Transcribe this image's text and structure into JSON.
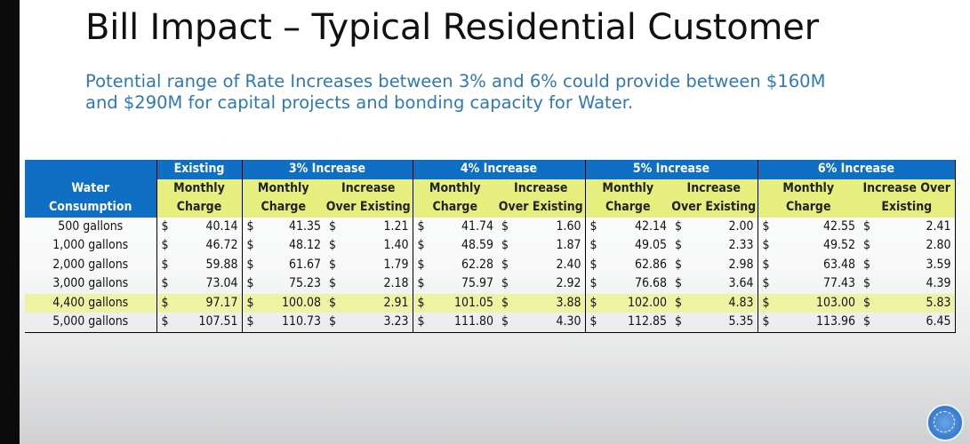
{
  "slide": {
    "title": "Bill Impact – Typical Residential Customer",
    "subtitle": "Potential range of Rate Increases between 3% and 6% could provide between $160M and $290M for capital projects and bonding capacity for Water."
  },
  "table": {
    "row_header": [
      "Water",
      "Consumption"
    ],
    "groups": [
      "Existing",
      "3% Increase",
      "4% Increase",
      "5% Increase",
      "6% Increase"
    ],
    "sub": {
      "monthly_1": "Monthly",
      "monthly_2": "Charge",
      "inc_1": "Increase",
      "inc_2": "Over Existing",
      "inc6_1": "Increase Over",
      "inc6_2": "Existing"
    },
    "currency": "$",
    "rows": [
      {
        "label": "500 gallons",
        "existing": "40.14",
        "c3": "41.35",
        "i3": "1.21",
        "c4": "41.74",
        "i4": "1.60",
        "c5": "42.14",
        "i5": "2.00",
        "c6": "42.55",
        "i6": "2.41"
      },
      {
        "label": "1,000 gallons",
        "existing": "46.72",
        "c3": "48.12",
        "i3": "1.40",
        "c4": "48.59",
        "i4": "1.87",
        "c5": "49.05",
        "i5": "2.33",
        "c6": "49.52",
        "i6": "2.80"
      },
      {
        "label": "2,000 gallons",
        "existing": "59.88",
        "c3": "61.67",
        "i3": "1.79",
        "c4": "62.28",
        "i4": "2.40",
        "c5": "62.86",
        "i5": "2.98",
        "c6": "63.48",
        "i6": "3.59"
      },
      {
        "label": "3,000 gallons",
        "existing": "73.04",
        "c3": "75.23",
        "i3": "2.18",
        "c4": "75.97",
        "i4": "2.92",
        "c5": "76.68",
        "i5": "3.64",
        "c6": "77.43",
        "i6": "4.39"
      },
      {
        "label": "4,400 gallons",
        "existing": "97.17",
        "c3": "100.08",
        "i3": "2.91",
        "c4": "101.05",
        "i4": "3.88",
        "c5": "102.00",
        "i5": "4.83",
        "c6": "103.00",
        "i6": "5.83"
      },
      {
        "label": "5,000 gallons",
        "existing": "107.51",
        "c3": "110.73",
        "i3": "3.23",
        "c4": "111.80",
        "i4": "4.30",
        "c5": "112.85",
        "i5": "5.35",
        "c6": "113.96",
        "i6": "6.45"
      }
    ],
    "highlight_row": 4
  },
  "colors": {
    "header_blue": "#0e6fc5",
    "subheader_green": "#e6ef7e",
    "highlight_row": "#eef3a3",
    "subtitle_blue": "#2f78b6"
  },
  "logo_icon": "utility-seal-icon"
}
